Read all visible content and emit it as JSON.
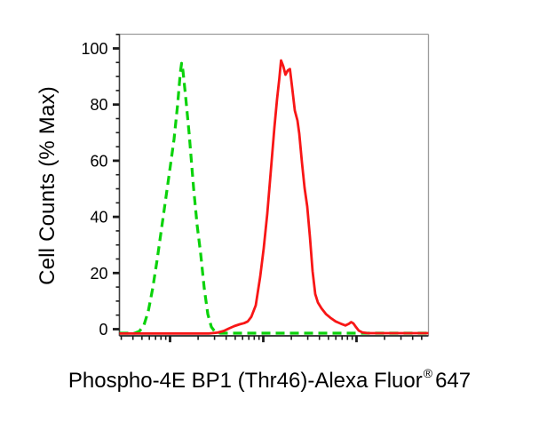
{
  "figure": {
    "ylabel": "Cell Counts (% Max)",
    "xlabel_main": "Phospho-4E BP1 (Thr46)-Alexa Fluor",
    "xlabel_sup": "®",
    "xlabel_suffix": "647"
  },
  "colors": {
    "background": "#ffffff",
    "axis": "#3f3f3f",
    "frame": "#9b9b9b",
    "tick": "#1a1a1a",
    "text": "#000000",
    "green_series": "#0bd20b",
    "red_series": "#f81616"
  },
  "chart_data": {
    "type": "line",
    "subtype": "flow-cytometry-histogram-overlay",
    "title": "",
    "xlabel": "Phospho-4E BP1 (Thr46)-Alexa Fluor®647",
    "ylabel": "Cell Counts (% Max)",
    "grid": false,
    "legend": null,
    "x_axis": {
      "scale": "log",
      "numeric_labels_shown": false,
      "major_decade_positions_fraction": [
        -0.138,
        0.1638,
        0.4655,
        0.7672,
        1.069
      ],
      "decade_width_fraction": 0.3017
    },
    "y_axis": {
      "min": 0,
      "max": 100,
      "major_ticks": [
        0,
        20,
        40,
        60,
        80,
        100
      ],
      "minor_tick_step": 5
    },
    "series": [
      {
        "name": "green-dashed-histogram",
        "color": "#0bd20b",
        "line_style": "dashed",
        "peak_value_percent": 94.5,
        "peak_x_fraction": 0.2,
        "points_fraction_percent": [
          [
            0.0,
            0.3
          ],
          [
            0.05,
            0.3
          ],
          [
            0.0647,
            1
          ],
          [
            0.079,
            3
          ],
          [
            0.0934,
            8
          ],
          [
            0.1078,
            16
          ],
          [
            0.1221,
            26
          ],
          [
            0.1365,
            37
          ],
          [
            0.1509,
            48
          ],
          [
            0.1652,
            59
          ],
          [
            0.1767,
            68
          ],
          [
            0.1882,
            80
          ],
          [
            0.1968,
            91
          ],
          [
            0.2011,
            94.5
          ],
          [
            0.2055,
            92
          ],
          [
            0.2141,
            83
          ],
          [
            0.2256,
            70
          ],
          [
            0.24,
            51
          ],
          [
            0.2514,
            38
          ],
          [
            0.2629,
            28
          ],
          [
            0.2744,
            16
          ],
          [
            0.2859,
            7
          ],
          [
            0.2974,
            2.5
          ],
          [
            0.3089,
            0.8
          ],
          [
            0.3261,
            0.3
          ],
          [
            1.0,
            0.3
          ]
        ]
      },
      {
        "name": "red-solid-histogram",
        "color": "#f81616",
        "line_style": "solid",
        "peak_value_percent": 95.5,
        "peak_x_fraction": 0.523,
        "points_fraction_percent": [
          [
            0.0,
            0.2
          ],
          [
            0.2888,
            0.2
          ],
          [
            0.3175,
            0.5
          ],
          [
            0.3376,
            1.1
          ],
          [
            0.3549,
            2
          ],
          [
            0.3721,
            2.8
          ],
          [
            0.3894,
            3.4
          ],
          [
            0.4037,
            3.8
          ],
          [
            0.4152,
            4.4
          ],
          [
            0.4267,
            6
          ],
          [
            0.4411,
            10
          ],
          [
            0.4554,
            20
          ],
          [
            0.4669,
            30
          ],
          [
            0.4784,
            42
          ],
          [
            0.4899,
            57
          ],
          [
            0.5014,
            72
          ],
          [
            0.51,
            82
          ],
          [
            0.5172,
            89
          ],
          [
            0.523,
            95.5
          ],
          [
            0.5302,
            93.5
          ],
          [
            0.5374,
            90.5
          ],
          [
            0.5445,
            92
          ],
          [
            0.5517,
            92.5
          ],
          [
            0.5589,
            86
          ],
          [
            0.5675,
            78
          ],
          [
            0.5761,
            74.5
          ],
          [
            0.5819,
            70
          ],
          [
            0.5905,
            60
          ],
          [
            0.5991,
            51
          ],
          [
            0.6078,
            44.5
          ],
          [
            0.6164,
            34
          ],
          [
            0.625,
            22
          ],
          [
            0.6336,
            14
          ],
          [
            0.6422,
            11
          ],
          [
            0.6537,
            9
          ],
          [
            0.6681,
            7
          ],
          [
            0.6825,
            5.7
          ],
          [
            0.6997,
            4.4
          ],
          [
            0.717,
            3.6
          ],
          [
            0.7313,
            3
          ],
          [
            0.7428,
            3.6
          ],
          [
            0.75,
            4.2
          ],
          [
            0.7572,
            3.7
          ],
          [
            0.7658,
            2.4
          ],
          [
            0.7744,
            1.2
          ],
          [
            0.7859,
            0.6
          ],
          [
            0.8032,
            0.3
          ],
          [
            1.0,
            0.3
          ]
        ]
      }
    ]
  }
}
